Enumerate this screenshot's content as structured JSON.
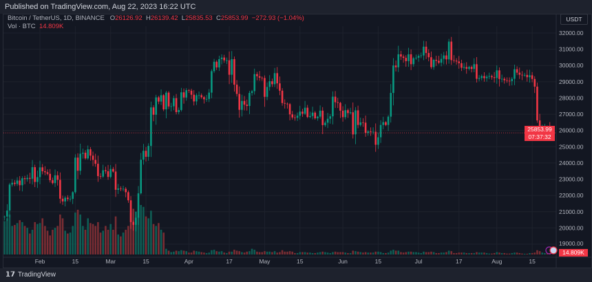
{
  "header": {
    "published": "Published on TradingView.com, Aug 22, 2023 16:22 UTC"
  },
  "legend": {
    "symbol": "Bitcoin / TetherUS, 1D, BINANCE",
    "o_label": "O",
    "o": "26126.92",
    "h_label": "H",
    "h": "26139.42",
    "l_label": "L",
    "l": "25835.53",
    "c_label": "C",
    "c": "25853.99",
    "change": "−272.93 (−1.04%)",
    "vol_label": "Vol · BTC",
    "vol": "14.809K"
  },
  "currency": "USDT",
  "last_price": {
    "price": "25853.99",
    "countdown": "07:37:32"
  },
  "last_volume": "14.809K",
  "footer": {
    "brand": "TradingView"
  },
  "colors": {
    "up": "#089981",
    "down": "#f23645",
    "up_vol": "#0f5e55",
    "down_vol": "#7a2d33"
  },
  "chart_data": {
    "type": "candlestick",
    "title": "Bitcoin / TetherUS, 1D, BINANCE",
    "start_date": "2023-01-18",
    "first_open": 20680,
    "closes": [
      20700,
      21070,
      22670,
      22780,
      22710,
      22920,
      22630,
      23060,
      23010,
      23080,
      23030,
      23740,
      22830,
      23130,
      23730,
      23490,
      23430,
      23330,
      22940,
      22760,
      23240,
      22960,
      21800,
      21630,
      21860,
      21780,
      21790,
      22200,
      24330,
      23520,
      24570,
      24630,
      24280,
      24840,
      24450,
      24190,
      23950,
      23190,
      23160,
      23550,
      23490,
      23140,
      23630,
      23470,
      22350,
      22430,
      22410,
      22410,
      22200,
      21700,
      20360,
      20190,
      20630,
      22130,
      24200,
      24750,
      24380,
      25050,
      27420,
      26970,
      28040,
      27780,
      28170,
      27300,
      28330,
      27480,
      27490,
      27990,
      27130,
      27260,
      28350,
      28030,
      28480,
      28450,
      28200,
      27790,
      28170,
      28170,
      28050,
      27920,
      27940,
      28330,
      29650,
      30230,
      29880,
      30390,
      30490,
      30320,
      30320,
      29430,
      30390,
      28820,
      28250,
      27270,
      27820,
      27590,
      27510,
      28310,
      28420,
      29470,
      29340,
      29250,
      29230,
      28070,
      28680,
      29030,
      28850,
      29530,
      28900,
      28450,
      27690,
      27650,
      27620,
      26990,
      26800,
      26780,
      26910,
      27160,
      27030,
      27400,
      26830,
      26890,
      27100,
      26750,
      26850,
      27220,
      26330,
      26480,
      26720,
      26870,
      28080,
      27740,
      27700,
      27220,
      26820,
      27250,
      27070,
      27120,
      25760,
      27240,
      26340,
      26500,
      26480,
      25850,
      25940,
      25900,
      25920,
      25120,
      25580,
      26340,
      26510,
      26340,
      26850,
      28310,
      30000,
      29890,
      30690,
      30550,
      30470,
      30270,
      30690,
      30080,
      30450,
      30480,
      30590,
      30620,
      31160,
      30770,
      30510,
      29900,
      30350,
      30290,
      30170,
      30410,
      30620,
      30380,
      31470,
      30330,
      30300,
      30250,
      30140,
      29860,
      29910,
      29800,
      29910,
      29790,
      30080,
      29180,
      29230,
      29350,
      29220,
      29310,
      29350,
      29280,
      29230,
      29700,
      29170,
      29180,
      29090,
      29060,
      29040,
      29180,
      29770,
      29560,
      29430,
      29400,
      29420,
      29280,
      29400,
      29170,
      28700,
      26620,
      26050,
      26090,
      26180,
      26126.92,
      25853.99
    ],
    "volume_k": [
      350,
      380,
      420,
      300,
      310,
      330,
      360,
      340,
      300,
      280,
      220,
      260,
      340,
      320,
      330,
      380,
      300,
      250,
      200,
      260,
      280,
      300,
      420,
      380,
      250,
      220,
      230,
      300,
      440,
      470,
      420,
      300,
      260,
      380,
      330,
      320,
      300,
      340,
      230,
      250,
      300,
      260,
      320,
      260,
      400,
      210,
      190,
      230,
      260,
      300,
      440,
      480,
      450,
      400,
      520,
      500,
      400,
      380,
      460,
      320,
      300,
      330,
      260,
      230,
      60,
      40,
      25,
      30,
      40,
      35,
      45,
      40,
      35,
      20,
      20,
      40,
      35,
      30,
      25,
      20,
      15,
      20,
      45,
      50,
      35,
      30,
      35,
      20,
      15,
      30,
      30,
      50,
      40,
      35,
      25,
      20,
      30,
      35,
      60,
      50,
      30,
      25,
      25,
      35,
      30,
      30,
      25,
      35,
      20,
      25,
      45,
      30,
      30,
      35,
      30,
      15,
      15,
      25,
      25,
      25,
      20,
      20,
      15,
      15,
      20,
      25,
      30,
      25,
      20,
      15,
      25,
      30,
      25,
      25,
      25,
      20,
      15,
      15,
      40,
      35,
      30,
      25,
      20,
      25,
      20,
      20,
      20,
      30,
      30,
      25,
      15,
      15,
      20,
      40,
      50,
      40,
      40,
      25,
      20,
      25,
      30,
      30,
      25,
      25,
      20,
      15,
      30,
      25,
      25,
      30,
      25,
      15,
      15,
      20,
      20,
      25,
      40,
      35,
      15,
      15,
      20,
      20,
      20,
      15,
      15,
      15,
      15,
      25,
      20,
      20,
      20,
      15,
      10,
      10,
      15,
      25,
      20,
      15,
      15,
      10,
      10,
      15,
      20,
      20,
      15,
      10,
      8,
      8,
      15,
      15,
      20,
      45,
      35,
      20,
      15,
      15,
      14.809
    ],
    "y_ticks": [
      "32000.00",
      "31000.00",
      "30000.00",
      "29000.00",
      "28000.00",
      "27000.00",
      "26000.00",
      "25000.00",
      "24000.00",
      "23000.00",
      "22000.00",
      "21000.00",
      "20000.00",
      "19000.00"
    ],
    "ylim": [
      19000,
      32000
    ],
    "x_ticks": [
      {
        "label": "Feb",
        "index": 14
      },
      {
        "label": "15",
        "index": 28
      },
      {
        "label": "Mar",
        "index": 42
      },
      {
        "label": "15",
        "index": 56
      },
      {
        "label": "Apr",
        "index": 73
      },
      {
        "label": "17",
        "index": 89
      },
      {
        "label": "May",
        "index": 103
      },
      {
        "label": "15",
        "index": 117
      },
      {
        "label": "Jun",
        "index": 134
      },
      {
        "label": "15",
        "index": 148
      },
      {
        "label": "Jul",
        "index": 164
      },
      {
        "label": "17",
        "index": 180
      },
      {
        "label": "Aug",
        "index": 195
      },
      {
        "label": "15",
        "index": 209
      }
    ],
    "grid": true
  }
}
